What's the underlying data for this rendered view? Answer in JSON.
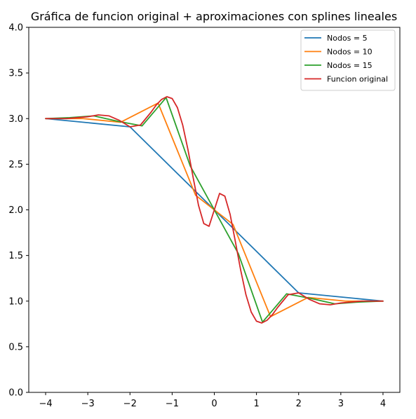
{
  "chart_data": {
    "type": "line",
    "title": "Gráfica de funcion original + aproximaciones con splines lineales",
    "xlabel": "",
    "ylabel": "",
    "xlim": [
      -4.4,
      4.4
    ],
    "ylim": [
      0.0,
      4.0
    ],
    "xticks": [
      -4,
      -3,
      -2,
      -1,
      0,
      1,
      2,
      3,
      4
    ],
    "xtick_labels": [
      "−4",
      "−3",
      "−2",
      "−1",
      "0",
      "1",
      "2",
      "3",
      "4"
    ],
    "yticks": [
      0.0,
      0.5,
      1.0,
      1.5,
      2.0,
      2.5,
      3.0,
      3.5,
      4.0
    ],
    "ytick_labels": [
      "0.0",
      "0.5",
      "1.0",
      "1.5",
      "2.0",
      "2.5",
      "3.0",
      "3.5",
      "4.0"
    ],
    "grid": false,
    "legend_position": "top-right",
    "series": [
      {
        "name": "Nodos = 5",
        "color": "#1f77b4",
        "x": [
          -4,
          -2,
          0,
          2,
          4
        ],
        "y": [
          3.0,
          2.91,
          2.0,
          1.09,
          1.0
        ]
      },
      {
        "name": "Nodos = 10",
        "color": "#ff7f0e",
        "x": [
          -4,
          -3.111,
          -2.222,
          -1.333,
          -0.444,
          0.444,
          1.333,
          2.222,
          3.111,
          4
        ],
        "y": [
          3.0,
          3.0,
          2.96,
          3.17,
          2.16,
          1.84,
          0.83,
          1.04,
          1.0,
          1.0
        ]
      },
      {
        "name": "Nodos = 15",
        "color": "#2ca02c",
        "x": [
          -4,
          -3.429,
          -2.857,
          -2.286,
          -1.714,
          -1.143,
          -0.571,
          0,
          0.571,
          1.143,
          1.714,
          2.286,
          2.857,
          3.429,
          4
        ],
        "y": [
          3.0,
          3.01,
          3.03,
          2.97,
          2.92,
          3.23,
          2.48,
          2.0,
          1.52,
          0.77,
          1.08,
          1.03,
          0.97,
          0.99,
          1.0
        ]
      },
      {
        "name": "Funcion original",
        "color": "#d62728",
        "x": [
          -4,
          -3.75,
          -3.5,
          -3.25,
          -3.0,
          -2.75,
          -2.5,
          -2.25,
          -2.0,
          -1.75,
          -1.5,
          -1.375,
          -1.25,
          -1.125,
          -1.0,
          -0.875,
          -0.75,
          -0.625,
          -0.5,
          -0.375,
          -0.25,
          -0.125,
          0,
          0.125,
          0.25,
          0.375,
          0.5,
          0.625,
          0.75,
          0.875,
          1.0,
          1.125,
          1.25,
          1.375,
          1.5,
          1.75,
          2.0,
          2.25,
          2.5,
          2.75,
          3.0,
          3.25,
          3.5,
          3.75,
          4.0
        ],
        "y": [
          3.0,
          3.0,
          3.0,
          3.01,
          3.02,
          3.04,
          3.03,
          2.98,
          2.91,
          2.93,
          3.07,
          3.15,
          3.21,
          3.24,
          3.22,
          3.12,
          2.93,
          2.66,
          2.35,
          2.05,
          1.85,
          1.82,
          2.0,
          2.18,
          2.15,
          1.95,
          1.65,
          1.34,
          1.07,
          0.88,
          0.78,
          0.76,
          0.79,
          0.85,
          0.93,
          1.07,
          1.09,
          1.02,
          0.97,
          0.96,
          0.98,
          0.99,
          1.0,
          1.0,
          1.0
        ]
      }
    ]
  }
}
